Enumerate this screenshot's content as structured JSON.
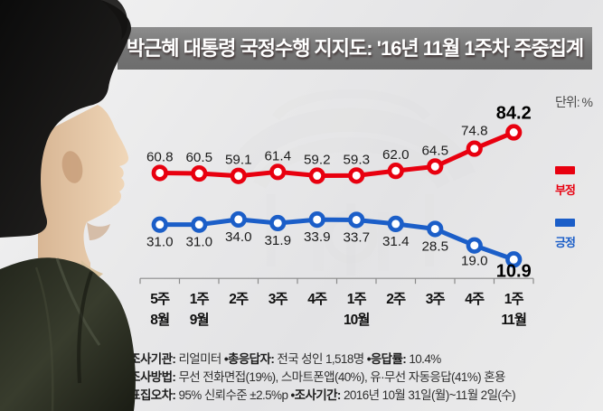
{
  "title": "박근혜 대통령 국정수행 지지도: '16년 11월 1주차 주중집계",
  "unit_label": "단위: %",
  "legend": {
    "items": [
      {
        "label": "부정",
        "color": "#e8000f"
      },
      {
        "label": "긍정",
        "color": "#1b5ec8"
      }
    ]
  },
  "chart_data": {
    "type": "line",
    "title": "박근혜 대통령 국정수행 지지도: '16년 11월 1주차 주중집계",
    "unit": "%",
    "ylim": [
      0,
      112
    ],
    "grid": false,
    "legend_position": "right",
    "categories": [
      {
        "week": "5주",
        "month": "8월"
      },
      {
        "week": "1주",
        "month": "9월"
      },
      {
        "week": "2주",
        "month": ""
      },
      {
        "week": "3주",
        "month": ""
      },
      {
        "week": "4주",
        "month": ""
      },
      {
        "week": "1주",
        "month": "10월"
      },
      {
        "week": "2주",
        "month": ""
      },
      {
        "week": "3주",
        "month": ""
      },
      {
        "week": "4주",
        "month": ""
      },
      {
        "week": "1주",
        "month": "11월"
      }
    ],
    "series": [
      {
        "name": "부정",
        "color": "#e8000f",
        "label_position": "above",
        "values": [
          60.8,
          60.5,
          59.1,
          61.4,
          59.2,
          59.3,
          62.0,
          64.5,
          74.8,
          84.2
        ]
      },
      {
        "name": "긍정",
        "color": "#1b5ec8",
        "label_position": "below",
        "values": [
          31.0,
          31.0,
          34.0,
          31.9,
          33.9,
          33.7,
          31.4,
          28.5,
          19.0,
          10.9
        ]
      }
    ]
  },
  "footer": {
    "lines": [
      {
        "segments": [
          {
            "text": "•조사기관:",
            "bold": true
          },
          {
            "text": " 리얼미터 ",
            "bold": false
          },
          {
            "text": "•총응답자:",
            "bold": true
          },
          {
            "text": " 전국 성인 1,518명 ",
            "bold": false
          },
          {
            "text": "•응답률:",
            "bold": true
          },
          {
            "text": " 10.4%",
            "bold": false
          }
        ]
      },
      {
        "segments": [
          {
            "text": "•조사방법:",
            "bold": true
          },
          {
            "text": " 무선 전화면접(19%), 스마트폰앱(40%), 유·무선 자동응답(41%) 혼용",
            "bold": false
          }
        ]
      },
      {
        "segments": [
          {
            "text": "•표집오차:",
            "bold": true
          },
          {
            "text": " 95% 신뢰수준 ±2.5%p ",
            "bold": false
          },
          {
            "text": "•조사기간:",
            "bold": true
          },
          {
            "text": " 2016년 10월 31일(월)~11월 2일(수)",
            "bold": false
          }
        ]
      }
    ]
  },
  "colors": {
    "negative": "#e8000f",
    "positive": "#1b5ec8",
    "titlebar": "#7a7a7a",
    "axis": "#8a8a8a",
    "value_text": "#1c1c1c",
    "category_text": "#111111"
  }
}
